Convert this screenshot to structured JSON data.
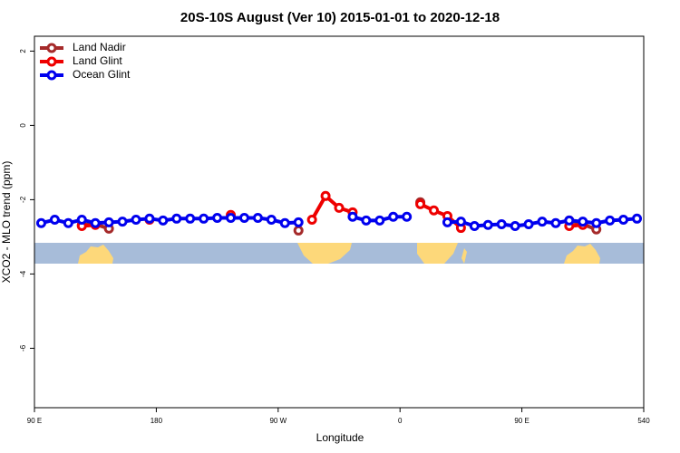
{
  "chart_data": {
    "type": "line",
    "title": "20S-10S August (Ver 10)   2015-01-01 to 2020-12-18",
    "x_label": "Longitude",
    "y_label": "XCO2 - MLO trend (ppm)",
    "xlim": [
      90,
      540
    ],
    "ylim": [
      -7.6,
      2.4
    ],
    "xticks": [
      {
        "value": 90,
        "label": "90 E"
      },
      180,
      {
        "value": 270,
        "label": "90 W"
      },
      {
        "value": 360,
        "label": "0"
      },
      {
        "value": 450,
        "label": "90 E"
      },
      540
    ],
    "yticks": [
      2,
      0,
      -2,
      -4,
      -6
    ],
    "legend": "top-left",
    "x": [
      95,
      105,
      115,
      125,
      135,
      145,
      155,
      165,
      175,
      185,
      195,
      205,
      215,
      225,
      235,
      245,
      255,
      265,
      275,
      285,
      295,
      305,
      315,
      325,
      335,
      345,
      355,
      365,
      375,
      385,
      395,
      405,
      415,
      425,
      435,
      445,
      455,
      465,
      475,
      485,
      495,
      505,
      515,
      525,
      535
    ],
    "series": [
      {
        "name": "Land Nadir",
        "color": "#a52a2a",
        "values": [
          null,
          null,
          null,
          -2.68,
          -2.66,
          -2.78,
          null,
          null,
          null,
          null,
          null,
          null,
          null,
          null,
          null,
          null,
          null,
          null,
          null,
          -2.83,
          null,
          null,
          null,
          null,
          null,
          null,
          null,
          null,
          -2.07,
          null,
          null,
          null,
          null,
          null,
          null,
          null,
          null,
          null,
          null,
          -2.56,
          -2.66,
          -2.8,
          null,
          null,
          null
        ]
      },
      {
        "name": "Land Glint",
        "color": "#ee0000",
        "values": [
          null,
          null,
          null,
          -2.71,
          -2.68,
          null,
          null,
          null,
          -2.54,
          null,
          null,
          null,
          null,
          null,
          -2.41,
          null,
          null,
          null,
          null,
          null,
          -2.54,
          -1.9,
          -2.22,
          -2.34,
          null,
          null,
          null,
          null,
          -2.12,
          -2.29,
          -2.44,
          -2.76,
          null,
          null,
          null,
          null,
          null,
          null,
          null,
          -2.71,
          -2.68,
          null,
          null,
          null,
          null
        ]
      },
      {
        "name": "Ocean Glint",
        "color": "#0000ee",
        "values": [
          -2.63,
          -2.54,
          -2.63,
          -2.54,
          -2.63,
          -2.61,
          -2.59,
          -2.54,
          -2.51,
          -2.56,
          -2.51,
          -2.51,
          -2.51,
          -2.49,
          -2.49,
          -2.49,
          -2.49,
          -2.54,
          -2.63,
          -2.61,
          null,
          null,
          null,
          -2.46,
          -2.56,
          -2.56,
          -2.46,
          -2.46,
          null,
          null,
          -2.61,
          -2.59,
          -2.71,
          -2.68,
          -2.66,
          -2.71,
          -2.66,
          -2.59,
          -2.63,
          -2.56,
          -2.59,
          -2.63,
          -2.56,
          -2.54,
          -2.51
        ]
      }
    ]
  }
}
